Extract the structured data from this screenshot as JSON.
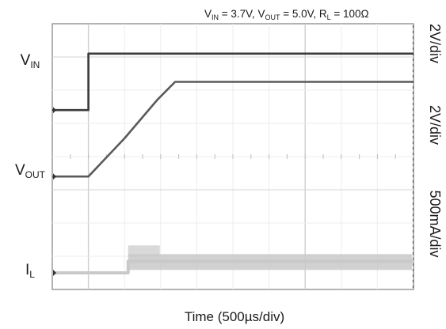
{
  "chart_data": {
    "type": "line",
    "title": {
      "vin": "V",
      "vin_sub": "IN",
      "vin_val": " = 3.7V, ",
      "vout": "V",
      "vout_sub": "OUT",
      "vout_val": " = 5.0V, ",
      "rl": "R",
      "rl_sub": "L",
      "rl_val": " = 100Ω"
    },
    "xlabel": "Time (500µs/div)",
    "x_divisions": 10,
    "y_divisions": 8,
    "grid": true,
    "scale_labels": [
      "2V/div",
      "2V/div",
      "500mA/div"
    ],
    "series": [
      {
        "name": "V",
        "sub": "IN",
        "color": "#3a3a3a",
        "label_div": 6.9,
        "x": [
          0,
          1.0,
          1.0,
          10
        ],
        "y": [
          5.4,
          5.4,
          7.1,
          7.1
        ]
      },
      {
        "name": "V",
        "sub": "OUT",
        "color": "#5a5a5a",
        "label_div": 3.6,
        "x": [
          0,
          1.0,
          2.0,
          2.9,
          3.4,
          10
        ],
        "y": [
          3.4,
          3.4,
          4.55,
          5.7,
          6.25,
          6.25
        ]
      },
      {
        "name": "I",
        "sub": "L",
        "color": "#c9c9c9",
        "label_div": 0.6,
        "x": [
          0,
          2.1,
          2.1,
          10
        ],
        "y": [
          0.5,
          0.5,
          0.85,
          0.85
        ]
      }
    ]
  }
}
